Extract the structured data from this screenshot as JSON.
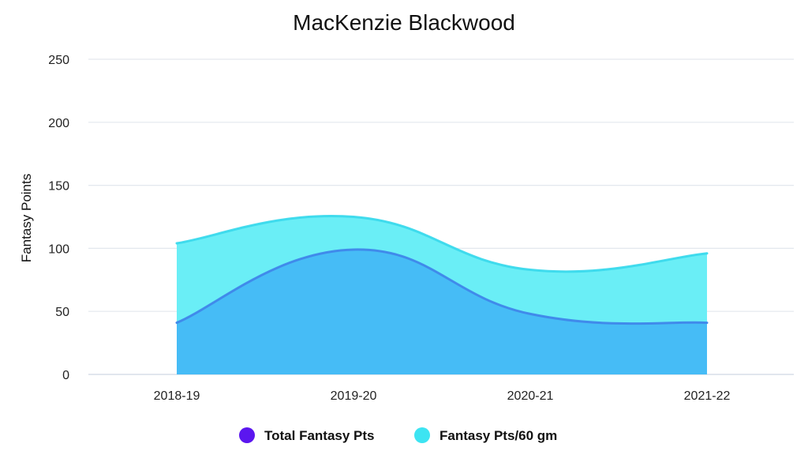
{
  "chart_data": {
    "type": "area",
    "title": "MacKenzie Blackwood",
    "xlabel": "",
    "ylabel": "Fantasy Points",
    "categories": [
      "2018-19",
      "2019-20",
      "2020-21",
      "2021-22"
    ],
    "ylim": [
      0,
      250
    ],
    "yticks": [
      0,
      50,
      100,
      150,
      200,
      250
    ],
    "grid": true,
    "legend_position": "bottom",
    "series": [
      {
        "name": "Total Fantasy Pts",
        "values": [
          41,
          99,
          48,
          41
        ],
        "line_color": "#3f86ea",
        "fill_color": "#45b8f5",
        "legend_color": "#5b16ef"
      },
      {
        "name": "Fantasy Pts/60 gm",
        "values": [
          104,
          125,
          83,
          96
        ],
        "line_color": "#3ad9ec",
        "fill_color": "#67eef6",
        "legend_color": "#3de4f2"
      }
    ]
  }
}
